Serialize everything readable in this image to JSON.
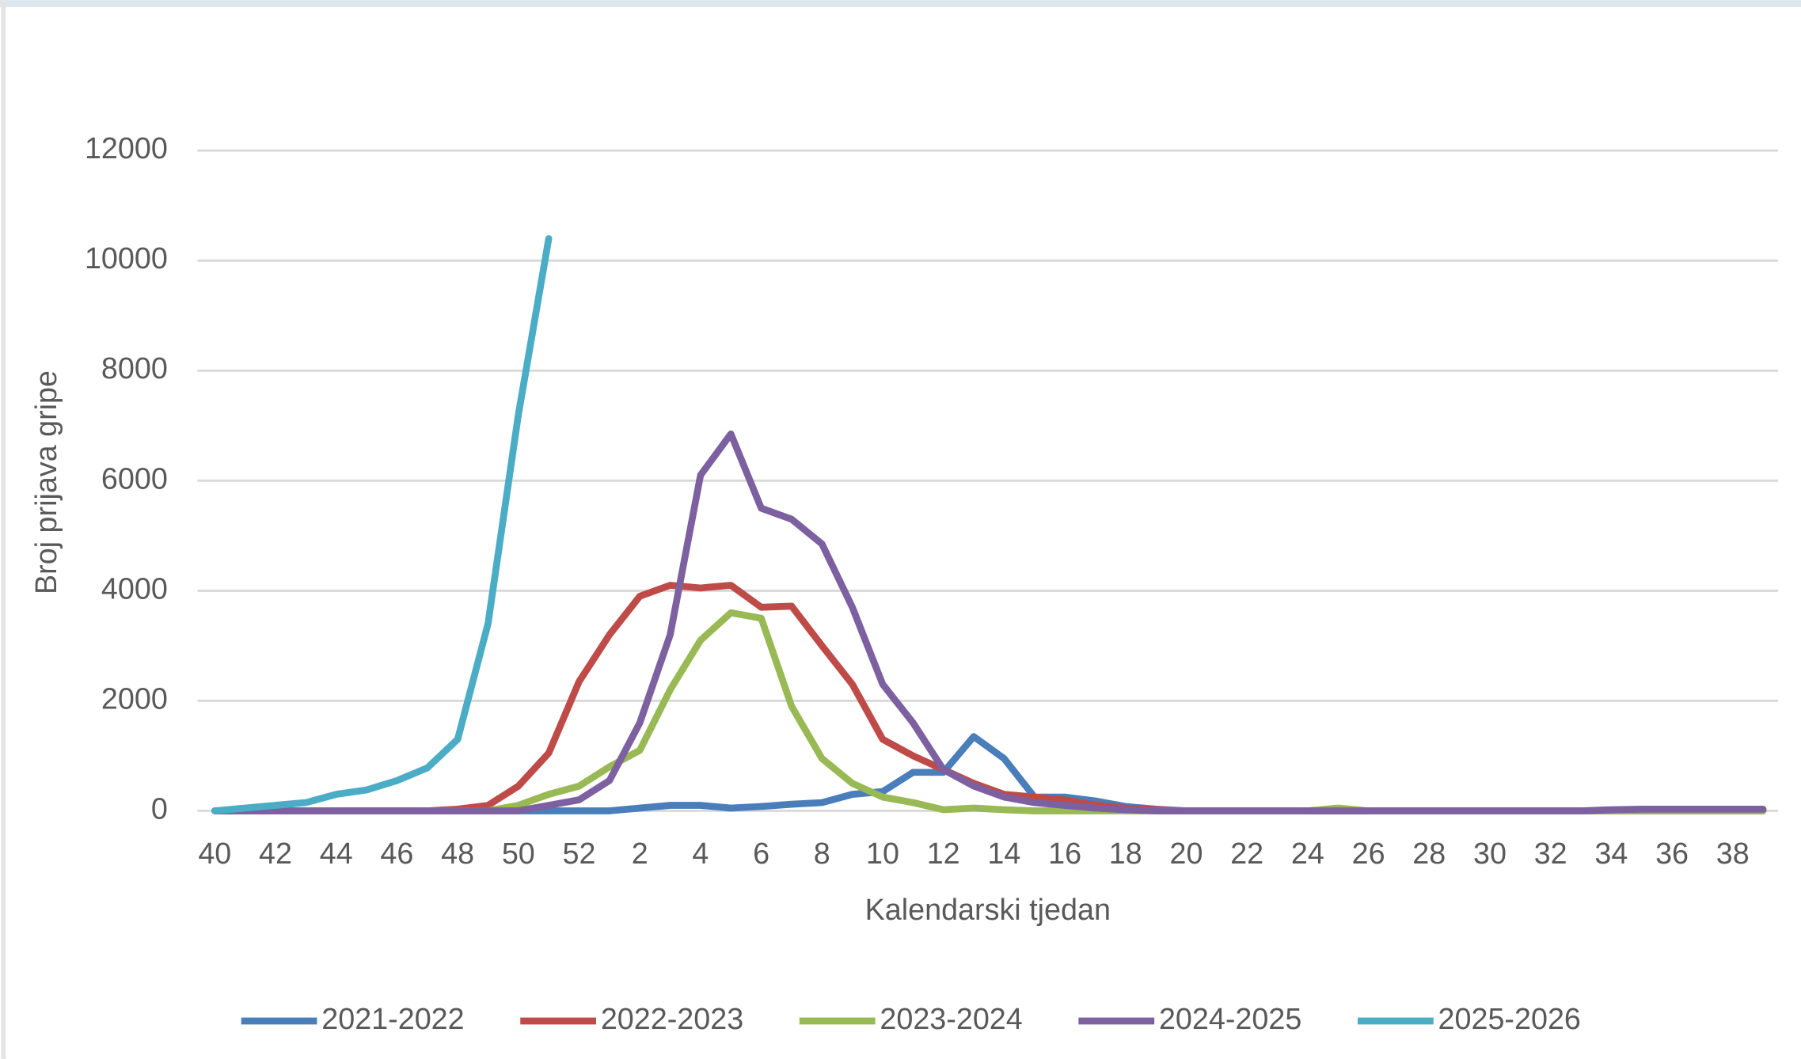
{
  "chart_data": {
    "type": "line",
    "y_label": "Broj prijava gripe",
    "x_label": "Kalendarski tjedan",
    "categories": [
      40,
      null,
      42,
      null,
      44,
      null,
      46,
      null,
      48,
      null,
      50,
      null,
      52,
      null,
      2,
      null,
      4,
      null,
      6,
      null,
      8,
      null,
      10,
      null,
      12,
      null,
      14,
      null,
      16,
      null,
      18,
      null,
      20,
      null,
      22,
      null,
      24,
      null,
      26,
      null,
      28,
      null,
      30,
      null,
      32,
      null,
      34,
      null,
      36,
      null,
      38,
      null
    ],
    "ylim": [
      0,
      12000
    ],
    "yticks": [
      0,
      2000,
      4000,
      6000,
      8000,
      10000,
      12000
    ],
    "grid": true,
    "legend": "bottom",
    "series": [
      {
        "name": "2021-2022",
        "color": "#4a7ebb",
        "values": [
          0,
          0,
          0,
          0,
          0,
          0,
          0,
          0,
          0,
          0,
          0,
          0,
          0,
          0,
          50,
          100,
          100,
          50,
          80,
          120,
          150,
          300,
          350,
          700,
          700,
          1350,
          950,
          250,
          250,
          180,
          80,
          30,
          0,
          0,
          0,
          0,
          0,
          0,
          0,
          0,
          0,
          0,
          0,
          0,
          0,
          0,
          0,
          0,
          0,
          0,
          0,
          0
        ]
      },
      {
        "name": "2022-2023",
        "color": "#be4b48",
        "values": [
          0,
          0,
          0,
          0,
          0,
          0,
          0,
          0,
          30,
          100,
          450,
          1050,
          2350,
          3200,
          3900,
          4100,
          4050,
          4100,
          3700,
          3720,
          3000,
          2300,
          1300,
          1000,
          750,
          500,
          300,
          250,
          200,
          100,
          50,
          20,
          0,
          0,
          0,
          0,
          0,
          0,
          0,
          0,
          0,
          0,
          0,
          0,
          0,
          0,
          0,
          0,
          0,
          0,
          0,
          0
        ]
      },
      {
        "name": "2023-2024",
        "color": "#98b954",
        "values": [
          0,
          0,
          0,
          0,
          0,
          0,
          0,
          0,
          0,
          0,
          100,
          300,
          450,
          800,
          1100,
          2200,
          3100,
          3600,
          3500,
          1900,
          950,
          500,
          250,
          150,
          20,
          50,
          20,
          0,
          0,
          0,
          0,
          0,
          0,
          0,
          0,
          0,
          0,
          50,
          0,
          0,
          0,
          0,
          0,
          0,
          0,
          0,
          0,
          0,
          0,
          0,
          0,
          0
        ]
      },
      {
        "name": "2024-2025",
        "color": "#7d60a0",
        "values": [
          0,
          0,
          0,
          0,
          0,
          0,
          0,
          0,
          0,
          0,
          0,
          100,
          200,
          550,
          1600,
          3200,
          6100,
          6850,
          5500,
          5300,
          4850,
          3700,
          2300,
          1600,
          750,
          450,
          250,
          150,
          100,
          50,
          20,
          0,
          0,
          0,
          0,
          0,
          0,
          0,
          0,
          0,
          0,
          0,
          0,
          0,
          0,
          0,
          20,
          30,
          30,
          30,
          30,
          30
        ]
      },
      {
        "name": "2025-2026",
        "color": "#4bacc6",
        "values": [
          0,
          50,
          100,
          150,
          300,
          380,
          550,
          780,
          1300,
          3400,
          7200,
          10400,
          null,
          null,
          null,
          null,
          null,
          null,
          null,
          null,
          null,
          null,
          null,
          null,
          null,
          null,
          null,
          null,
          null,
          null,
          null,
          null,
          null,
          null,
          null,
          null,
          null,
          null,
          null,
          null,
          null,
          null,
          null,
          null,
          null,
          null,
          null,
          null,
          null,
          null,
          null,
          null
        ]
      }
    ]
  }
}
